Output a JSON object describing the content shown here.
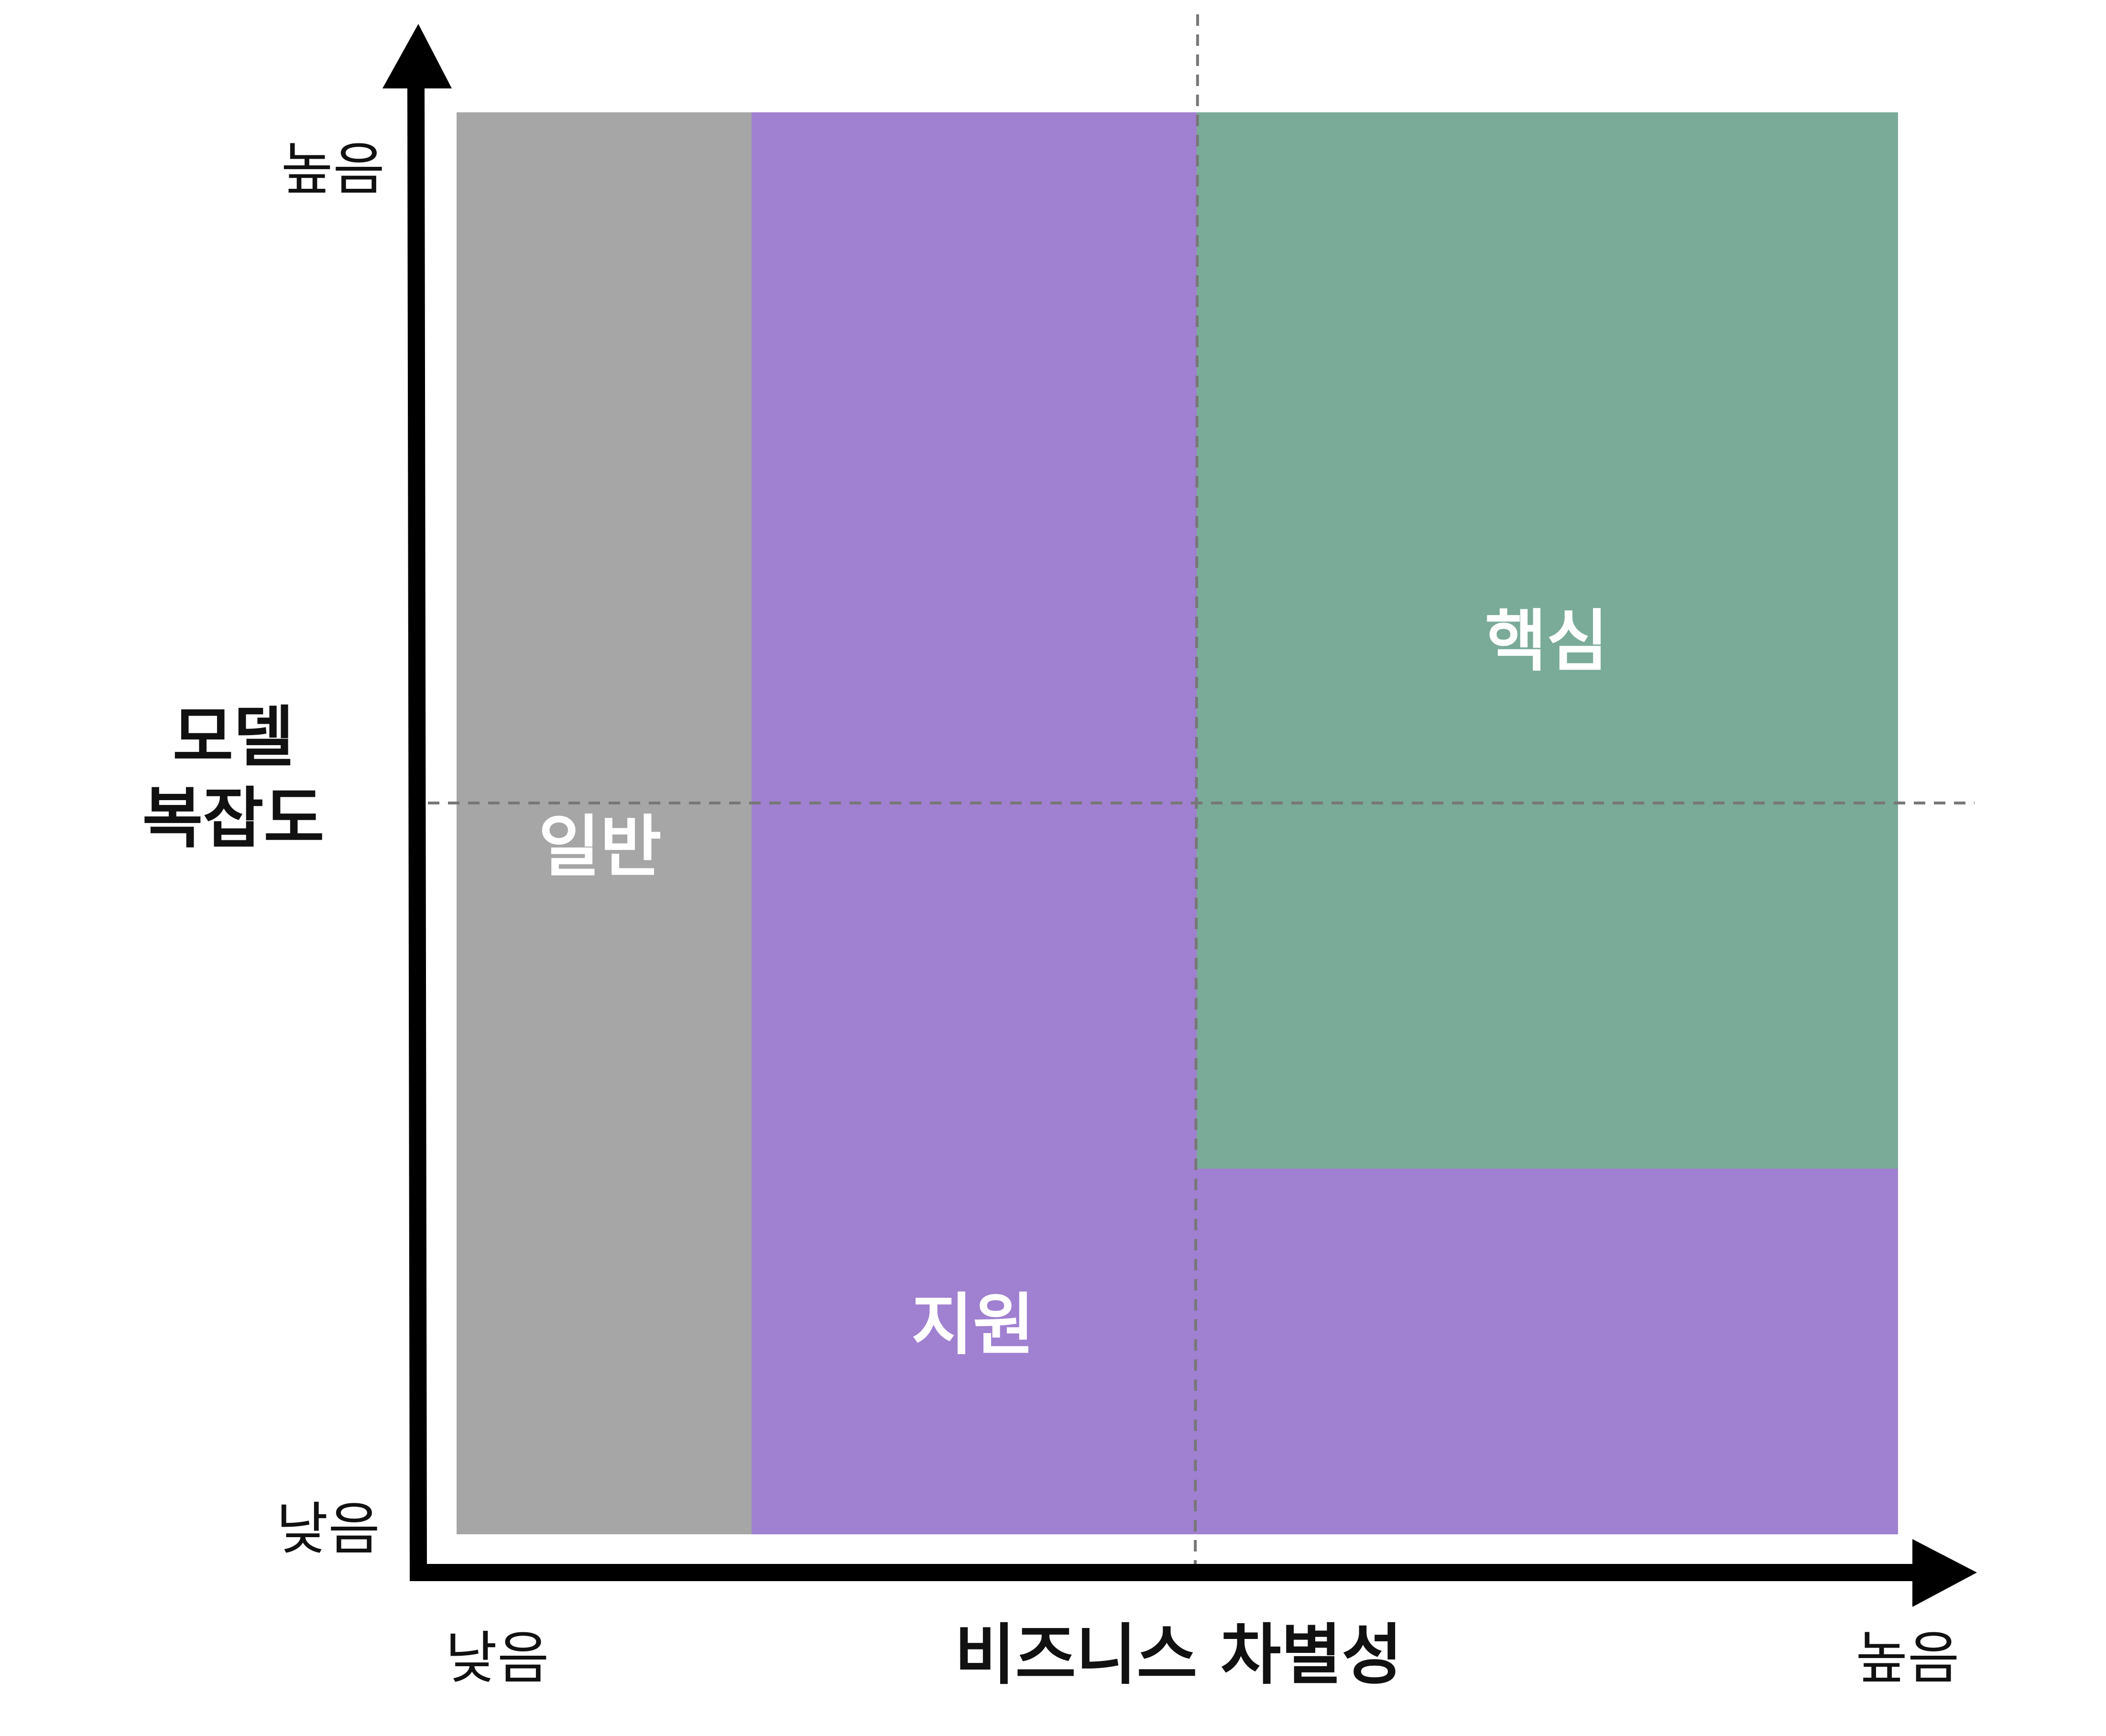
{
  "regions": {
    "generic": {
      "label": "일반",
      "color": "#a6a6a6"
    },
    "supporting": {
      "label": "지원",
      "color": "#a080d0"
    },
    "core": {
      "label": "핵심",
      "color": "#7aab98"
    }
  },
  "y_axis": {
    "title_line1": "모델",
    "title_line2": "복잡도",
    "high": "높음",
    "low": "낮음"
  },
  "x_axis": {
    "title": "비즈니스 차별성",
    "low": "낮음",
    "high": "높음"
  },
  "colors": {
    "axis": "#000000",
    "guide": "#777777"
  }
}
